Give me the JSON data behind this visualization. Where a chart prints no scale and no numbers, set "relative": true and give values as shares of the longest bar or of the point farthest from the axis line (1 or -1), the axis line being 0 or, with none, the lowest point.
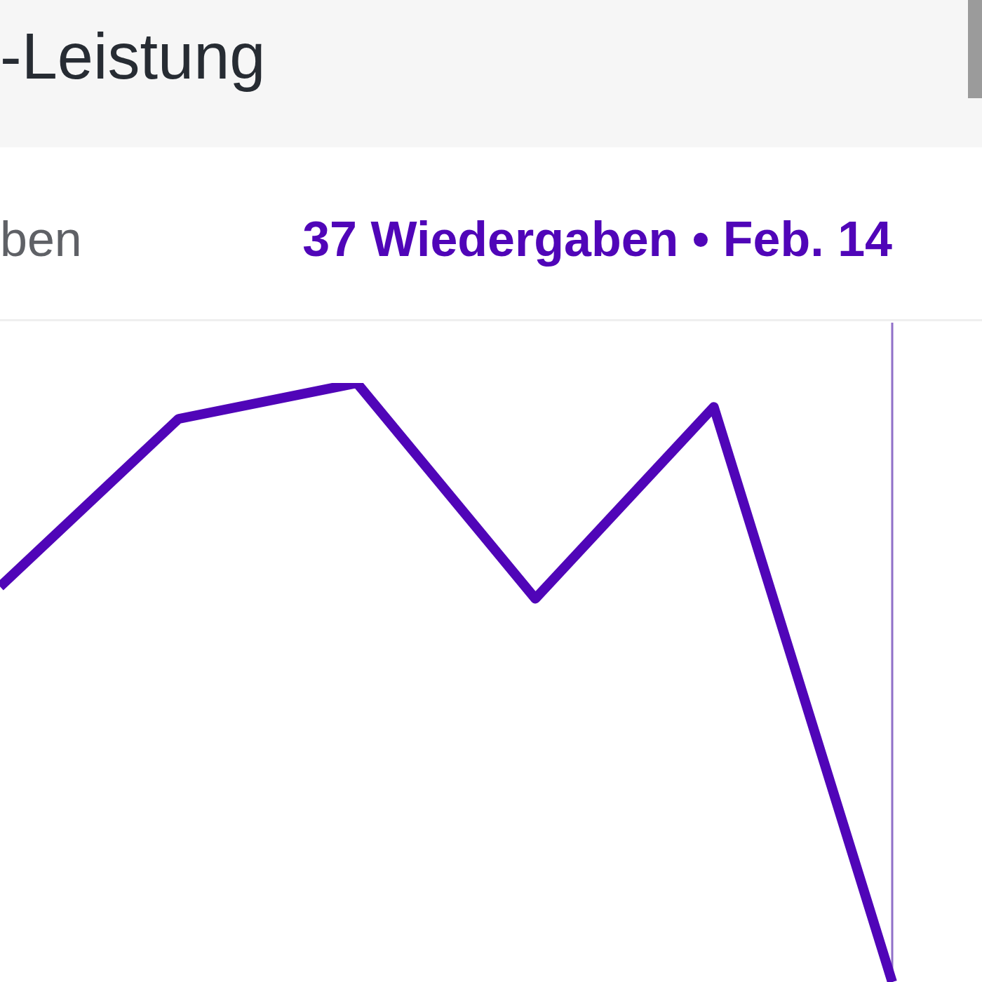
{
  "chart_data": {
    "type": "line",
    "title": "-Leistung",
    "subtitle": "ben",
    "annotations": [
      "37 Wiedergaben • Feb. 14"
    ],
    "categories": [
      null,
      null,
      null,
      null,
      null,
      null
    ],
    "series": [
      {
        "color": "#5005b8",
        "values": [
          0.66,
          0.94,
          1,
          0.64,
          0.96,
          0
        ]
      }
    ],
    "relative": true,
    "legend": false,
    "marker": "none",
    "line_style": "solid"
  }
}
